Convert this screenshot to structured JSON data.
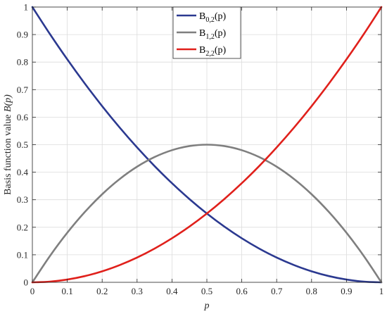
{
  "chart_data": {
    "type": "line",
    "title": "",
    "xlabel": "p",
    "ylabel_prefix": "Basis function value ",
    "ylabel_var": "B(p)",
    "xlim": [
      0,
      1
    ],
    "ylim": [
      0,
      1
    ],
    "grid": true,
    "legend_placement": "top-center",
    "x_ticks": [
      "0",
      "0.1",
      "0.2",
      "0.3",
      "0.4",
      "0.5",
      "0.6",
      "0.7",
      "0.8",
      "0.9",
      "1"
    ],
    "y_ticks": [
      "0",
      "0.1",
      "0.2",
      "0.3",
      "0.4",
      "0.5",
      "0.6",
      "0.7",
      "0.8",
      "0.9",
      "1"
    ],
    "x": [
      0,
      0.05,
      0.1,
      0.15,
      0.2,
      0.25,
      0.3,
      0.35,
      0.4,
      0.45,
      0.5,
      0.55,
      0.6,
      0.65,
      0.7,
      0.75,
      0.8,
      0.85,
      0.9,
      0.95,
      1
    ],
    "series": [
      {
        "label_main": "B",
        "label_sub": "0,2",
        "label_tail": "(p)",
        "color": "#2b3990",
        "values": [
          1,
          0.9025,
          0.81,
          0.7225,
          0.64,
          0.5625,
          0.49,
          0.4225,
          0.36,
          0.3025,
          0.25,
          0.2025,
          0.16,
          0.1225,
          0.09,
          0.0625,
          0.04,
          0.0225,
          0.01,
          0.0025,
          0
        ]
      },
      {
        "label_main": "B",
        "label_sub": "1,2",
        "label_tail": "(p)",
        "color": "#7f7f7f",
        "values": [
          0,
          0.095,
          0.18,
          0.255,
          0.32,
          0.375,
          0.42,
          0.455,
          0.48,
          0.495,
          0.5,
          0.495,
          0.48,
          0.455,
          0.42,
          0.375,
          0.32,
          0.255,
          0.18,
          0.095,
          0
        ]
      },
      {
        "label_main": "B",
        "label_sub": "2,2",
        "label_tail": "(p)",
        "color": "#e0201b",
        "values": [
          0,
          0.0025,
          0.01,
          0.0225,
          0.04,
          0.0625,
          0.09,
          0.1225,
          0.16,
          0.2025,
          0.25,
          0.3025,
          0.36,
          0.4225,
          0.49,
          0.5625,
          0.64,
          0.7225,
          0.81,
          0.9025,
          1
        ]
      }
    ]
  }
}
